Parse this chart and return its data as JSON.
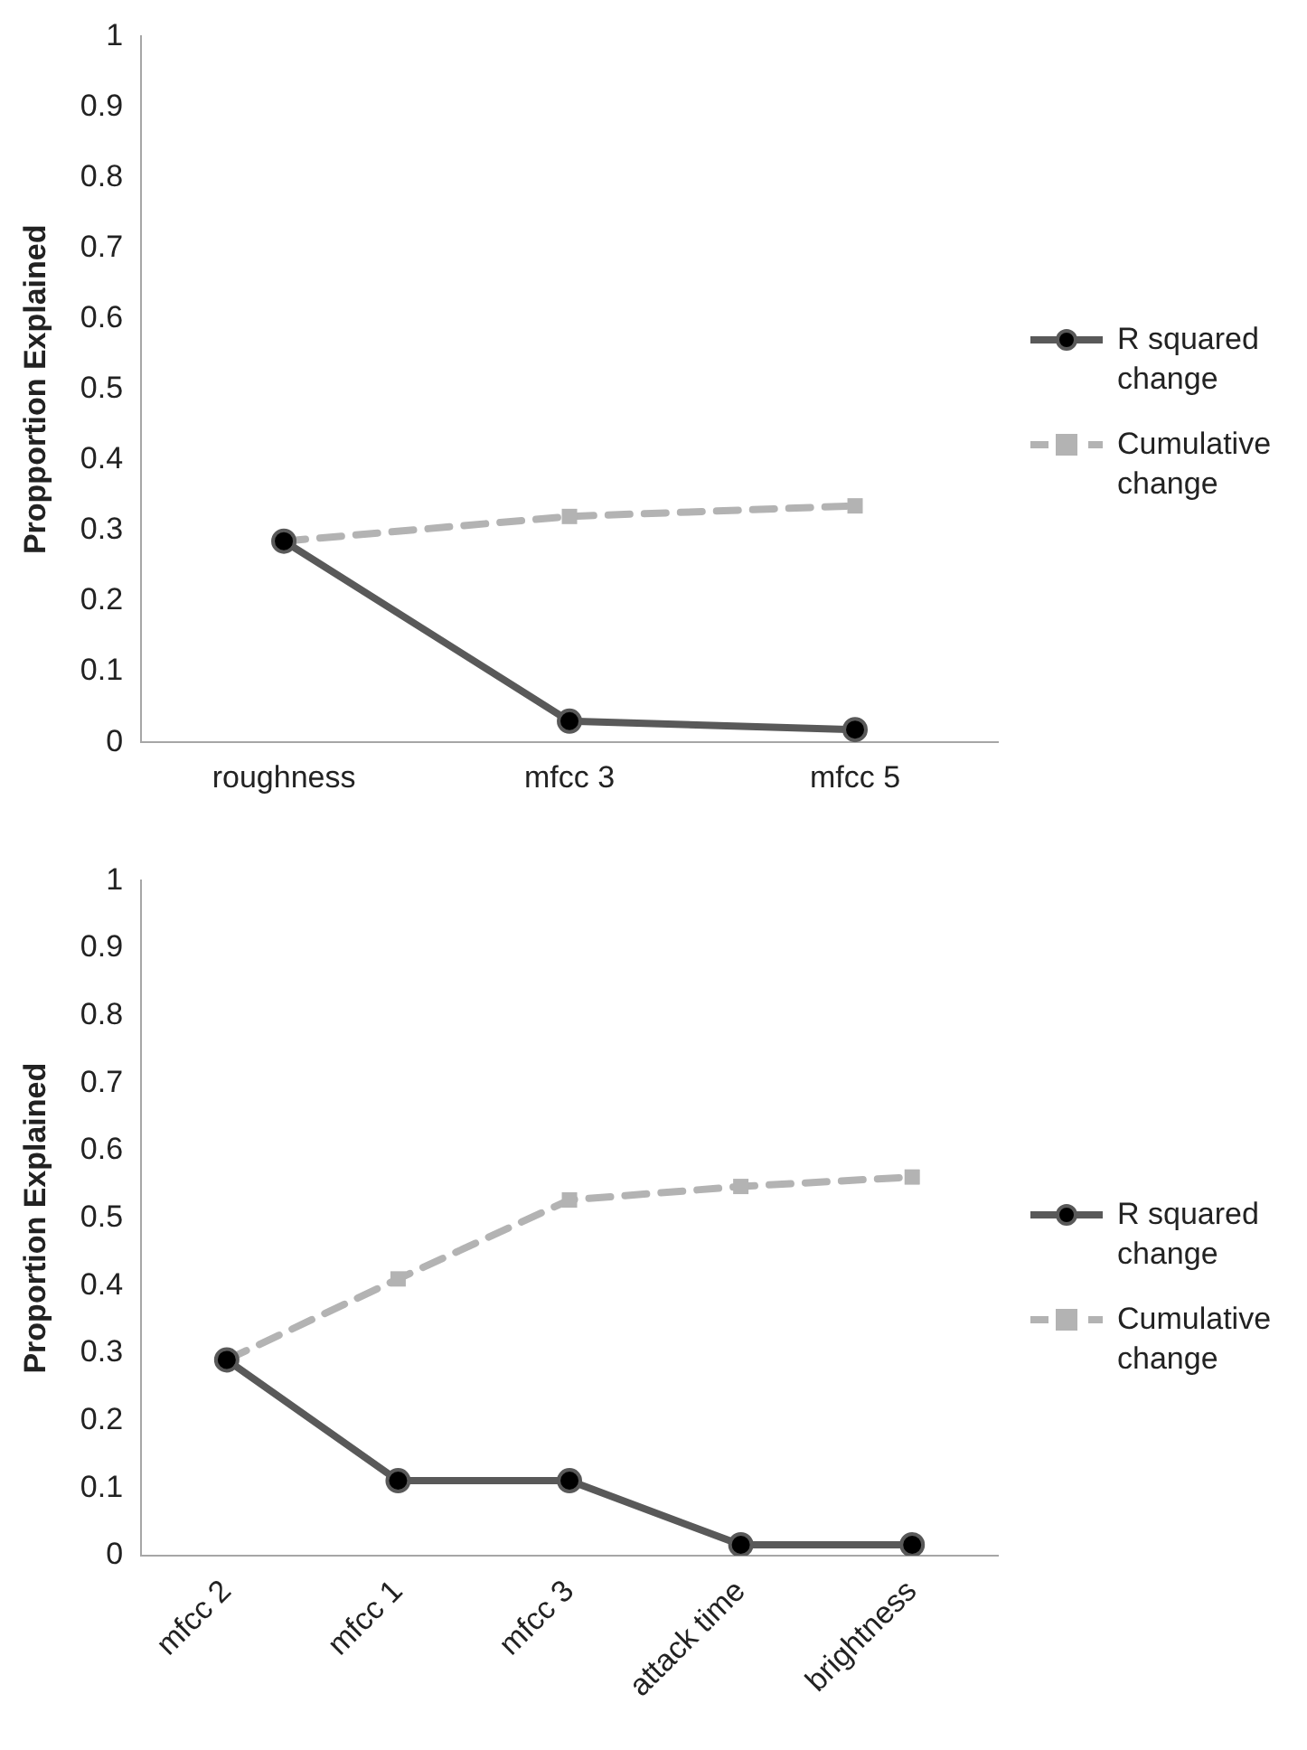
{
  "chart_data": [
    {
      "type": "line",
      "ylabel": "Propportion Explained",
      "categories": [
        "roughness",
        "mfcc 3",
        "mfcc 5"
      ],
      "ylim": [
        0,
        1
      ],
      "yticks": [
        0,
        0.1,
        0.2,
        0.3,
        0.4,
        0.5,
        0.6,
        0.7,
        0.8,
        0.9,
        1
      ],
      "grid": false,
      "legend": "right",
      "series": [
        {
          "name": "R squared change",
          "color": "#595959",
          "marker": "circle",
          "line_style": "solid",
          "values": [
            0.285,
            0.03,
            0.018
          ]
        },
        {
          "name": "Cumulative change",
          "color": "#b3b3b3",
          "marker": "square",
          "line_style": "dashed",
          "values": [
            0.285,
            0.32,
            0.335
          ]
        }
      ]
    },
    {
      "type": "line",
      "ylabel": "Proportion Explained",
      "categories": [
        "mfcc 2",
        "mfcc 1",
        "mfcc 3",
        "attack time",
        "brightness"
      ],
      "ylim": [
        0,
        1
      ],
      "yticks": [
        0,
        0.1,
        0.2,
        0.3,
        0.4,
        0.5,
        0.6,
        0.7,
        0.8,
        0.9,
        1
      ],
      "grid": false,
      "legend": "right",
      "series": [
        {
          "name": "R squared change",
          "color": "#595959",
          "marker": "circle",
          "line_style": "solid",
          "values": [
            0.29,
            0.111,
            0.111,
            0.016,
            0.016
          ]
        },
        {
          "name": "Cumulative change",
          "color": "#b3b3b3",
          "marker": "square",
          "line_style": "dashed",
          "values": [
            0.29,
            0.41,
            0.527,
            0.547,
            0.561
          ]
        }
      ]
    }
  ]
}
